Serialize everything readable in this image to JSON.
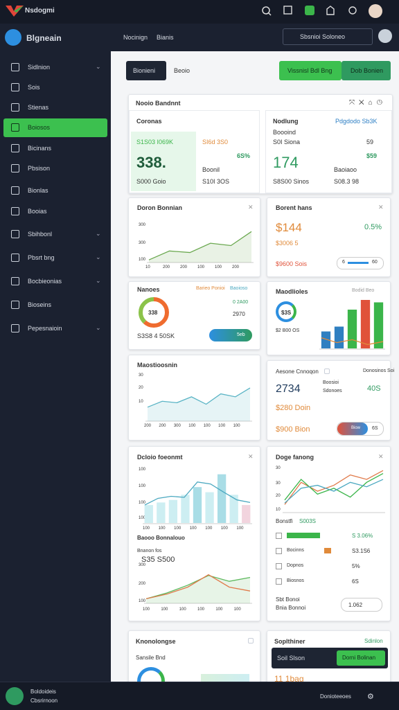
{
  "topbar": {
    "brand": "Nsdogmi"
  },
  "sidebar": {
    "title": "Blgneain",
    "items": [
      "Sidlnion",
      "Sois",
      "Stienas",
      "Boiosos",
      "Bicinans",
      "Pbsison",
      "Bionlas",
      "Booias",
      "Sbihbonl",
      "Pbsrt bng",
      "Bocbieonias",
      "Bioseins",
      "Pepesnaioin"
    ]
  },
  "header": {
    "breadcrumb": [
      "Nocinign",
      "Bianis"
    ],
    "search": "Sbsnioi Soloneo"
  },
  "toolbar": {
    "tabs": [
      "Bionieni",
      "Beoio"
    ],
    "buttons": [
      "Vissnisl Bdl Bng",
      "Dob Bonien"
    ]
  },
  "summary": {
    "title": "Nooio Bandnnt",
    "left": {
      "title": "Coronas",
      "tag1": "S1S03 I069K",
      "tag2": "SI6d 3S0",
      "value": "338.",
      "delta": "6S%",
      "label": "Boonil",
      "foot1": "S000 Goio",
      "foot2": "S10I 3OS"
    },
    "right": {
      "title": "Nodlung",
      "link": "Pdgdodo Sb3K",
      "sub": "Boooind",
      "row": "S0I Siona",
      "small": "59",
      "value": "174",
      "delta": "$59",
      "label": "Baoiaoo",
      "foot1": "S8S00 Sinos",
      "foot2": "S08.3 98"
    }
  },
  "cards": [
    {
      "title": "Doron Bonnian",
      "yticks": [
        "300",
        "300",
        "100"
      ],
      "xticks": [
        "10",
        "200",
        "200",
        "100",
        "100",
        "200"
      ],
      "chart": {
        "type": "area",
        "ylim": [
          0,
          100
        ],
        "series": [
          {
            "color": "#6aa84f",
            "values": [
              5,
              28,
              24,
              48,
              42,
              78
            ]
          }
        ]
      }
    },
    {
      "title": "Borent hans",
      "value": "$144",
      "pct": "0.5%",
      "sub": "$3006 5",
      "foot": "$9600 Sois",
      "pill": [
        "6",
        "60"
      ]
    },
    {
      "title": "Nanoes",
      "legend": [
        "Barieo Ponioi",
        "Baoioso"
      ],
      "rows": [
        "0 2A00",
        "2970"
      ],
      "center": "338",
      "foot": "S3S8 4 50SK",
      "button": "5eb",
      "chart": {
        "type": "pie",
        "series": [
          {
            "color": "#ef6c2f",
            "values": [
              62
            ]
          },
          {
            "color": "#8bc34a",
            "values": [
              38
            ]
          }
        ]
      }
    },
    {
      "title": "Maodlioles",
      "tag": "Bodid Beo",
      "center": "$3S",
      "sub": "$2 B00 OS",
      "chart": {
        "type": "bar",
        "ylim": [
          0,
          100
        ],
        "series": [
          {
            "type": "bar",
            "colors": [
              "#2f7fc1",
              "#2f7fc1",
              "#3bb54a",
              "#e0523a",
              "#3bb54a"
            ],
            "values": [
              35,
              45,
              80,
              100,
              95
            ]
          },
          {
            "type": "line",
            "color": "#e08a3a",
            "values": [
              22,
              12,
              18,
              8,
              14
            ]
          }
        ]
      }
    },
    {
      "title": "Maostioosnin",
      "yticks": [
        "30",
        "20",
        "10"
      ],
      "xticks": [
        "200",
        "200",
        "300",
        "100",
        "100",
        "100",
        "100"
      ],
      "chart": {
        "type": "area",
        "ylim": [
          0,
          30
        ],
        "series": [
          {
            "color": "#5ab4c5",
            "values": [
              9,
              13,
              12,
              16,
              11,
              18,
              16,
              22
            ]
          }
        ]
      }
    },
    {
      "title": "Aesone Cnnoqon",
      "value": "2734",
      "pct": "40S",
      "sub": "$280 Doin",
      "foot": "$900 Bion",
      "labels": [
        "Boosioi",
        "Sdonoes"
      ],
      "right": [
        "Donosinos Soi",
        "Biow"
      ],
      "pill": "6S"
    },
    {
      "title": "Dcloio foeonmt",
      "yticks": [
        "100",
        "100",
        "100",
        "100"
      ],
      "xticks": [
        "100",
        "100",
        "100",
        "100",
        "100",
        "100",
        "100"
      ],
      "chart": {
        "type": "bar",
        "ylim": [
          0,
          100
        ],
        "series": [
          {
            "type": "bar",
            "colors": [
              "#cdeef2",
              "#cdeef2",
              "#cdeef2",
              "#cdeef2",
              "#a9dde6",
              "#cdeef2",
              "#a9dde6",
              "#cdeef2",
              "#f2d4de"
            ],
            "values": [
              35,
              40,
              45,
              55,
              70,
              60,
              95,
              55,
              35
            ]
          },
          {
            "type": "line",
            "color": "#4aa8c0",
            "values": [
              35,
              48,
              52,
              50,
              80,
              76,
              60,
              45,
              40
            ]
          }
        ]
      },
      "sub1": "Baooo Bonnalouo",
      "value": "S35 S500",
      "label": "Bnanon fos",
      "yticks2": [
        "300",
        "200",
        "100"
      ],
      "xticks2": [
        "100",
        "100",
        "100",
        "100",
        "100",
        "100"
      ],
      "chart2": {
        "type": "area",
        "ylim": [
          0,
          100
        ],
        "series": [
          {
            "color": "#5cb85c",
            "values": [
              10,
              25,
              45,
              70,
              55,
              65
            ]
          },
          {
            "type": "line",
            "color": "#e07a4a",
            "values": [
              10,
              22,
              40,
              72,
              40,
              30
            ]
          }
        ]
      }
    },
    {
      "title": "Doge fanong",
      "yticks": [
        "30",
        "30",
        "20",
        "10"
      ],
      "chart": {
        "type": "line",
        "ylim": [
          0,
          30
        ],
        "series": [
          {
            "color": "#e07a4a",
            "values": [
              5,
              20,
              14,
              18,
              25,
              22,
              28
            ]
          },
          {
            "color": "#3bb54a",
            "values": [
              8,
              22,
              12,
              16,
              10,
              20,
              26
            ]
          },
          {
            "color": "#4aa8c0",
            "values": [
              6,
              16,
              18,
              14,
              20,
              17,
              22
            ]
          }
        ]
      },
      "legend_title": "Bonstfi",
      "legend_value": "S003S",
      "rows": [
        {
          "label": "Bonsntao",
          "value": "S 3.06%"
        },
        {
          "label": "Bocinns",
          "value": "S3.1S6"
        },
        {
          "label": "Dopnos",
          "value": "5%"
        },
        {
          "label": "Biosnos",
          "value": "6S"
        }
      ],
      "foot1": "Sbt Bonoi",
      "foot2": "Bnia Bonnoi",
      "pill": "1.062"
    },
    {
      "title": "Knonolongse",
      "sub": "Sansile Bnd"
    },
    {
      "title": "Soplthiner",
      "tag": "Sdinlon",
      "overlay": "Soil Slson",
      "button": "Dorni Bolinan",
      "value": "11 1bag"
    }
  ],
  "bottom": {
    "user": "Boldoideis",
    "role": "Cbsrirnoon",
    "action": "Donioteeoes"
  }
}
